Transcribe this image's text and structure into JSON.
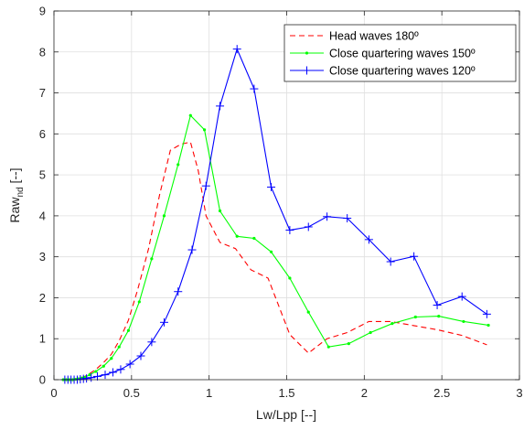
{
  "chart_data": {
    "type": "line",
    "xlabel": "Lw/Lpp [--]",
    "ylabel": "Raw",
    "ylabel_sub": "nd",
    "ylabel_unit": " [--]",
    "xlim": [
      0,
      3
    ],
    "ylim": [
      0,
      9
    ],
    "xticks": [
      "0",
      "0.5",
      "1",
      "1.5",
      "2",
      "2.5",
      "3"
    ],
    "yticks": [
      "0",
      "1",
      "2",
      "3",
      "4",
      "5",
      "6",
      "7",
      "8",
      "9"
    ],
    "grid": true,
    "legend_position": "top-right",
    "series": [
      {
        "name": "Head waves 180º",
        "color": "#ff0000",
        "style": "dashed",
        "marker": "none",
        "x": [
          0.06,
          0.08,
          0.1,
          0.12,
          0.14,
          0.16,
          0.18,
          0.2,
          0.23,
          0.27,
          0.32,
          0.37,
          0.42,
          0.48,
          0.54,
          0.61,
          0.68,
          0.75,
          0.82,
          0.88,
          0.93,
          0.98,
          1.07,
          1.17,
          1.27,
          1.38,
          1.52,
          1.64,
          1.76,
          1.89,
          2.03,
          2.17,
          2.32,
          2.47,
          2.63,
          2.79
        ],
        "y": [
          0,
          0,
          0,
          0.01,
          0.02,
          0.03,
          0.05,
          0.08,
          0.15,
          0.25,
          0.42,
          0.62,
          0.95,
          1.45,
          2.2,
          3.2,
          4.5,
          5.6,
          5.75,
          5.8,
          5.1,
          4.0,
          3.35,
          3.2,
          2.68,
          2.48,
          1.1,
          0.65,
          1.0,
          1.15,
          1.42,
          1.42,
          1.32,
          1.22,
          1.08,
          0.85
        ]
      },
      {
        "name": "Close quartering waves 150º",
        "color": "#00ff00",
        "style": "solid",
        "marker": "dot",
        "x": [
          0.06,
          0.08,
          0.1,
          0.12,
          0.14,
          0.16,
          0.18,
          0.2,
          0.23,
          0.27,
          0.32,
          0.37,
          0.42,
          0.48,
          0.55,
          0.63,
          0.71,
          0.8,
          0.88,
          0.97,
          1.07,
          1.18,
          1.29,
          1.4,
          1.52,
          1.64,
          1.77,
          1.9,
          2.04,
          2.18,
          2.33,
          2.48,
          2.64,
          2.8
        ],
        "y": [
          0,
          0,
          0,
          0,
          0.01,
          0.02,
          0.04,
          0.06,
          0.12,
          0.2,
          0.33,
          0.52,
          0.8,
          1.2,
          1.9,
          2.95,
          4.0,
          5.25,
          6.45,
          6.1,
          4.12,
          3.5,
          3.45,
          3.12,
          2.48,
          1.65,
          0.8,
          0.88,
          1.15,
          1.37,
          1.53,
          1.55,
          1.42,
          1.33
        ]
      },
      {
        "name": "Close quartering waves 120º",
        "color": "#0000ff",
        "style": "solid",
        "marker": "plus",
        "x": [
          0.07,
          0.09,
          0.11,
          0.13,
          0.15,
          0.17,
          0.19,
          0.21,
          0.24,
          0.28,
          0.33,
          0.38,
          0.43,
          0.49,
          0.56,
          0.63,
          0.71,
          0.8,
          0.89,
          0.98,
          1.07,
          1.18,
          1.29,
          1.4,
          1.52,
          1.64,
          1.76,
          1.89,
          2.03,
          2.17,
          2.32,
          2.47,
          2.63,
          2.79
        ],
        "y": [
          0,
          0,
          0,
          0,
          0,
          0.01,
          0.02,
          0.03,
          0.05,
          0.08,
          0.12,
          0.18,
          0.25,
          0.38,
          0.58,
          0.92,
          1.4,
          2.15,
          3.17,
          4.73,
          6.68,
          8.07,
          7.1,
          4.7,
          3.65,
          3.73,
          3.98,
          3.94,
          3.42,
          2.88,
          3.01,
          1.82,
          2.03,
          1.6
        ]
      }
    ]
  }
}
